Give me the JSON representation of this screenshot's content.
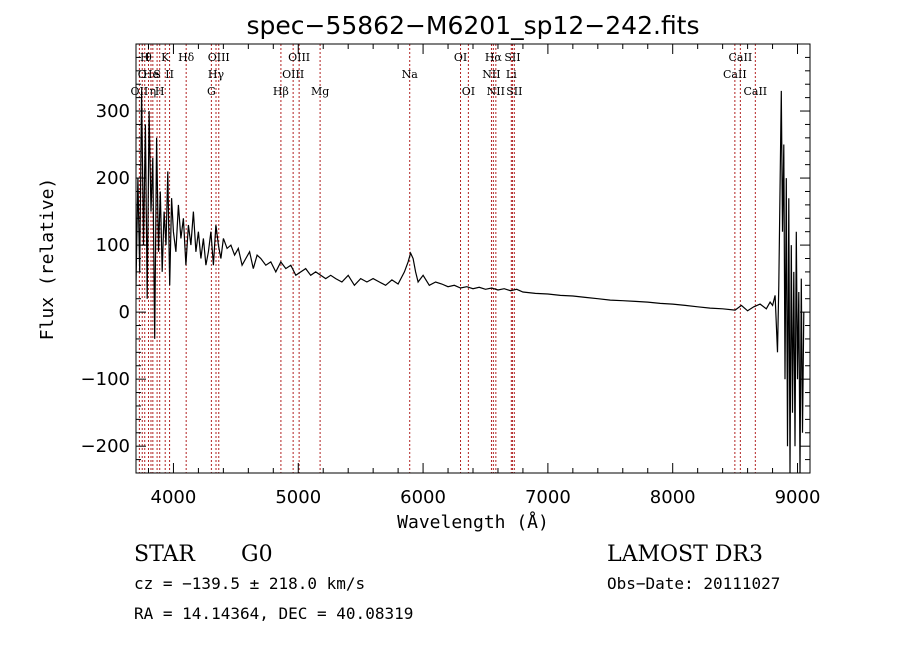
{
  "chart_data": {
    "type": "line",
    "title": "spec−55862−M6201_sp12−242.fits",
    "xlabel": "Wavelength (Å)",
    "ylabel": "Flux (relative)",
    "xlim": [
      3700,
      9100
    ],
    "ylim": [
      -240,
      400
    ],
    "xticks": [
      {
        "value": 4000,
        "label": "4000"
      },
      {
        "value": 5000,
        "label": "5000"
      },
      {
        "value": 6000,
        "label": "6000"
      },
      {
        "value": 7000,
        "label": "7000"
      },
      {
        "value": 8000,
        "label": "8000"
      },
      {
        "value": 9000,
        "label": "9000"
      }
    ],
    "yticks": [
      {
        "value": -200,
        "label": "−200"
      },
      {
        "value": -100,
        "label": "−100"
      },
      {
        "value": 0,
        "label": "0"
      },
      {
        "value": 100,
        "label": "100"
      },
      {
        "value": 200,
        "label": "200"
      },
      {
        "value": 300,
        "label": "300"
      }
    ],
    "series": [
      {
        "name": "flux",
        "x": [
          3700,
          3715,
          3730,
          3745,
          3760,
          3775,
          3790,
          3805,
          3820,
          3835,
          3850,
          3865,
          3880,
          3895,
          3910,
          3925,
          3940,
          3955,
          3970,
          3985,
          4000,
          4020,
          4040,
          4060,
          4080,
          4100,
          4120,
          4140,
          4160,
          4180,
          4200,
          4220,
          4240,
          4260,
          4280,
          4300,
          4320,
          4340,
          4360,
          4380,
          4400,
          4430,
          4460,
          4490,
          4520,
          4550,
          4580,
          4610,
          4640,
          4670,
          4700,
          4740,
          4780,
          4820,
          4860,
          4900,
          4940,
          4980,
          5020,
          5060,
          5100,
          5140,
          5180,
          5220,
          5260,
          5300,
          5350,
          5400,
          5450,
          5500,
          5550,
          5600,
          5650,
          5700,
          5750,
          5800,
          5850,
          5880,
          5900,
          5920,
          5940,
          5960,
          5980,
          6000,
          6050,
          6100,
          6150,
          6200,
          6250,
          6300,
          6350,
          6400,
          6450,
          6500,
          6550,
          6600,
          6650,
          6700,
          6750,
          6800,
          6900,
          7000,
          7100,
          7200,
          7300,
          7400,
          7500,
          7600,
          7700,
          7800,
          7900,
          8000,
          8100,
          8200,
          8300,
          8400,
          8500,
          8550,
          8600,
          8650,
          8700,
          8750,
          8780,
          8800,
          8820,
          8840,
          8850,
          8860,
          8870,
          8880,
          8890,
          8900,
          8910,
          8920,
          8930,
          8940,
          8950,
          8960,
          8970,
          8980,
          8990,
          9000,
          9010,
          9020,
          9030,
          9040,
          9050
        ],
        "y": [
          40,
          200,
          60,
          330,
          100,
          280,
          20,
          300,
          150,
          230,
          -40,
          260,
          90,
          180,
          60,
          150,
          100,
          210,
          40,
          170,
          120,
          90,
          160,
          110,
          140,
          70,
          130,
          100,
          150,
          90,
          120,
          80,
          110,
          70,
          90,
          120,
          70,
          130,
          100,
          80,
          110,
          95,
          100,
          85,
          95,
          70,
          80,
          90,
          65,
          85,
          80,
          70,
          75,
          60,
          75,
          65,
          70,
          55,
          60,
          65,
          55,
          60,
          55,
          50,
          55,
          50,
          45,
          55,
          40,
          50,
          45,
          50,
          45,
          40,
          48,
          42,
          60,
          75,
          88,
          80,
          60,
          45,
          50,
          55,
          40,
          45,
          42,
          38,
          40,
          36,
          38,
          35,
          37,
          34,
          36,
          33,
          35,
          32,
          34,
          30,
          28,
          27,
          25,
          24,
          22,
          20,
          18,
          17,
          16,
          15,
          13,
          12,
          10,
          8,
          6,
          5,
          3,
          10,
          2,
          8,
          12,
          5,
          15,
          10,
          25,
          -60,
          40,
          180,
          330,
          120,
          250,
          -100,
          200,
          -200,
          170,
          -240,
          100,
          -150,
          60,
          -200,
          120,
          -100,
          30,
          -240,
          50,
          -180,
          0
        ]
      }
    ],
    "lines": [
      {
        "wl": 3727,
        "label": "OII",
        "row": 3
      },
      {
        "wl": 3750,
        "label": "O",
        "row": 2
      },
      {
        "wl": 3770,
        "label": "H",
        "row": 1
      },
      {
        "wl": 3800,
        "label": "θ",
        "row": 1
      },
      {
        "wl": 3820,
        "label": "He",
        "row": 2
      },
      {
        "wl": 3835,
        "label": "η",
        "row": 3
      },
      {
        "wl": 3869,
        "label": "S",
        "row": 2
      },
      {
        "wl": 3890,
        "label": "H",
        "row": 3
      },
      {
        "wl": 3934,
        "label": "K",
        "row": 1
      },
      {
        "wl": 3969,
        "label": "II",
        "row": 2
      },
      {
        "wl": 4102,
        "label": "Hδ",
        "row": 1
      },
      {
        "wl": 4304,
        "label": "G",
        "row": 3
      },
      {
        "wl": 4341,
        "label": "Hγ",
        "row": 2
      },
      {
        "wl": 4363,
        "label": "OIII",
        "row": 1
      },
      {
        "wl": 4861,
        "label": "Hβ",
        "row": 3
      },
      {
        "wl": 4959,
        "label": "OIII",
        "row": 2
      },
      {
        "wl": 5007,
        "label": "OIII",
        "row": 1
      },
      {
        "wl": 5175,
        "label": "Mg",
        "row": 3
      },
      {
        "wl": 5893,
        "label": "Na",
        "row": 2
      },
      {
        "wl": 6300,
        "label": "OI",
        "row": 1
      },
      {
        "wl": 6363,
        "label": "OI",
        "row": 3
      },
      {
        "wl": 6548,
        "label": "NII",
        "row": 2
      },
      {
        "wl": 6563,
        "label": "Hα",
        "row": 1
      },
      {
        "wl": 6583,
        "label": "NII",
        "row": 3
      },
      {
        "wl": 6707,
        "label": "Li",
        "row": 2
      },
      {
        "wl": 6716,
        "label": "SII",
        "row": 1
      },
      {
        "wl": 6731,
        "label": "SII",
        "row": 3
      },
      {
        "wl": 8498,
        "label": "CaII",
        "row": 2
      },
      {
        "wl": 8542,
        "label": "CaII",
        "row": 1
      },
      {
        "wl": 8662,
        "label": "CaII",
        "row": 3
      }
    ]
  },
  "info": {
    "class_label": "STAR",
    "subclass": "G0",
    "survey": "LAMOST DR3",
    "cz": "cz = −139.5 ± 218.0 km/s",
    "obs_date": "Obs−Date: 20111027",
    "radec": "RA =  14.14364, DEC =  40.08319"
  },
  "colors": {
    "line_marker": "#b22222",
    "spectrum": "#000000"
  }
}
